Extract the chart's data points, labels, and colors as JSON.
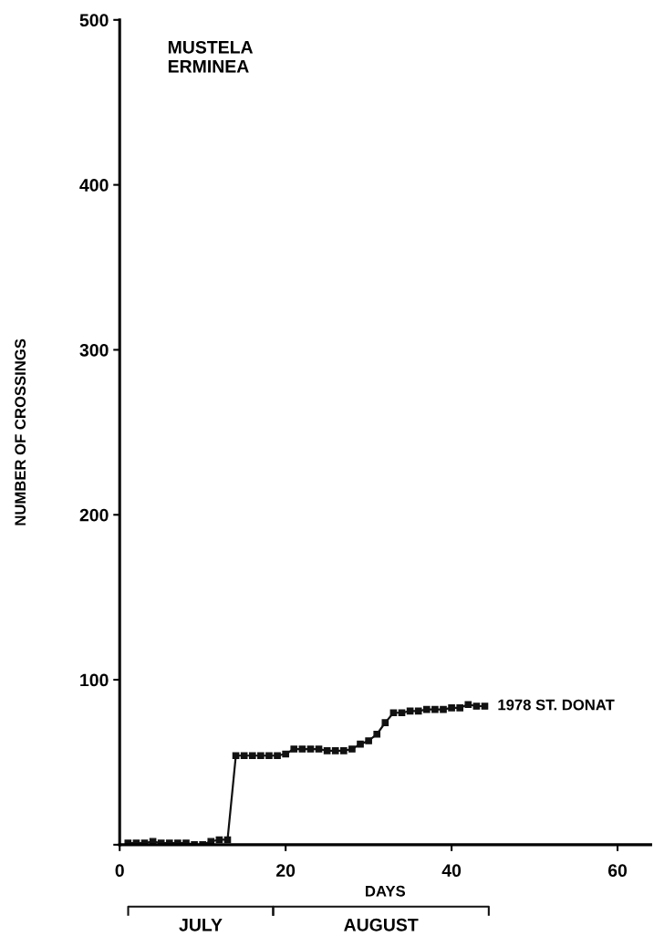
{
  "chart_data": {
    "type": "line",
    "title": "MUSTELA\nERMINEA",
    "xlabel": "DAYS",
    "ylabel": "NUMBER OF CROSSINGS",
    "x": [
      1,
      2,
      3,
      4,
      5,
      6,
      7,
      8,
      9,
      10,
      11,
      12,
      13,
      14,
      15,
      16,
      17,
      18,
      19,
      20,
      21,
      22,
      23,
      24,
      25,
      26,
      27,
      28,
      29,
      30,
      31,
      32,
      33,
      34,
      35,
      36,
      37,
      38,
      39,
      40,
      41,
      42,
      43,
      44
    ],
    "series": [
      {
        "name": "1978 ST. DONAT",
        "color": "#111111",
        "values": [
          1,
          1,
          1,
          2,
          1,
          1,
          1,
          1,
          0,
          0,
          2,
          3,
          3,
          54,
          54,
          54,
          54,
          54,
          54,
          55,
          58,
          58,
          58,
          58,
          57,
          57,
          57,
          58,
          61,
          63,
          67,
          74,
          80,
          80,
          81,
          81,
          82,
          82,
          82,
          83,
          83,
          85,
          84,
          84
        ]
      }
    ],
    "xlim": [
      0,
      64
    ],
    "ylim": [
      0,
      500
    ],
    "xticks": [
      0,
      20,
      40,
      60
    ],
    "yticks": [
      {
        "value": 0,
        "label": null
      },
      100,
      200,
      300,
      400,
      500
    ],
    "annotations": [
      "JULY",
      "AUGUST"
    ],
    "marker": "square",
    "line_style": "solid",
    "grid": false,
    "legend": false
  }
}
